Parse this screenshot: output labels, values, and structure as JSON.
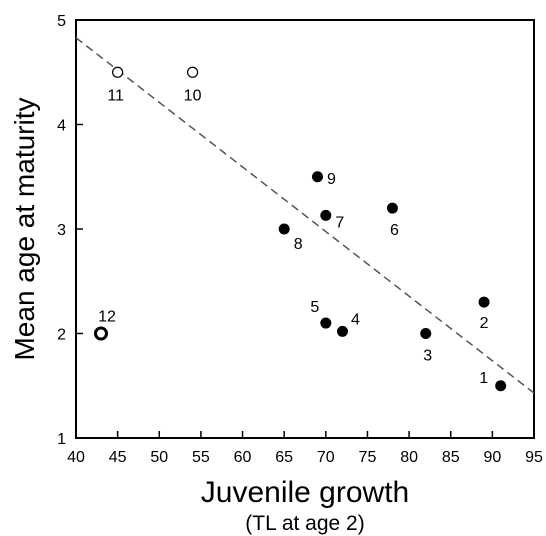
{
  "chart_data": {
    "type": "scatter",
    "title": "",
    "xlabel": "Juvenile growth",
    "xlabel_sub": "(TL at age 2)",
    "ylabel": "Mean age at maturity",
    "xlim": [
      40,
      95
    ],
    "ylim": [
      1,
      5
    ],
    "x_ticks": [
      "40",
      "45",
      "50",
      "55",
      "60",
      "65",
      "70",
      "75",
      "80",
      "85",
      "90",
      "95"
    ],
    "y_ticks": [
      "1",
      "2",
      "3",
      "4",
      "5"
    ],
    "grid": false,
    "legend": "none",
    "points": [
      {
        "label": "1",
        "x": 91,
        "y": 1.5,
        "marker": "filled"
      },
      {
        "label": "2",
        "x": 89,
        "y": 2.3,
        "marker": "filled"
      },
      {
        "label": "3",
        "x": 82,
        "y": 2.0,
        "marker": "filled"
      },
      {
        "label": "4",
        "x": 72,
        "y": 2.02,
        "marker": "filled"
      },
      {
        "label": "5",
        "x": 70,
        "y": 2.1,
        "marker": "filled"
      },
      {
        "label": "6",
        "x": 78,
        "y": 3.2,
        "marker": "filled"
      },
      {
        "label": "7",
        "x": 70,
        "y": 3.13,
        "marker": "filled"
      },
      {
        "label": "8",
        "x": 65,
        "y": 3.0,
        "marker": "filled"
      },
      {
        "label": "9",
        "x": 69,
        "y": 3.5,
        "marker": "filled"
      },
      {
        "label": "10",
        "x": 54,
        "y": 4.5,
        "marker": "open"
      },
      {
        "label": "11",
        "x": 45,
        "y": 4.5,
        "marker": "open"
      },
      {
        "label": "12",
        "x": 43,
        "y": 2.0,
        "marker": "open-bold"
      }
    ],
    "fit_line": {
      "style": "dashed",
      "x": [
        40,
        95
      ],
      "y": [
        4.83,
        1.43
      ]
    },
    "colors": {
      "marker": "#000000",
      "line": "#555555"
    }
  }
}
